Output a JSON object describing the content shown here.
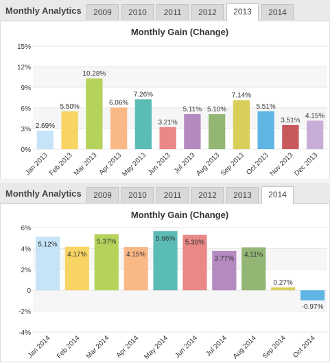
{
  "panels": [
    {
      "heading": "Monthly Analytics",
      "tabs": [
        "2009",
        "2010",
        "2011",
        "2012",
        "2013",
        "2014"
      ],
      "active_tab": "2013"
    },
    {
      "heading": "Monthly Analytics",
      "tabs": [
        "2009",
        "2010",
        "2011",
        "2012",
        "2013",
        "2014"
      ],
      "active_tab": "2014"
    }
  ],
  "chart_data": [
    {
      "type": "bar",
      "title": "Monthly Gain (Change)",
      "categories": [
        "Jan 2013",
        "Feb 2013",
        "Mar 2013",
        "Apr 2013",
        "May 2013",
        "Jun 2013",
        "Jul 2013",
        "Aug 2013",
        "Sep 2013",
        "Oct 2013",
        "Nov 2013",
        "Dec 2013"
      ],
      "values": [
        2.69,
        5.5,
        10.28,
        6.06,
        7.26,
        3.21,
        5.11,
        5.1,
        7.14,
        5.51,
        3.51,
        4.15
      ],
      "data_labels": [
        "2.69%",
        "5.50%",
        "10.28%",
        "6.06%",
        "7.26%",
        "3.21%",
        "5.11%",
        "5.10%",
        "7.14%",
        "5.51%",
        "3.51%",
        "4.15%"
      ],
      "colors": [
        "#c6e4f8",
        "#f7d463",
        "#b5d35a",
        "#fbb887",
        "#5bbcb5",
        "#e98886",
        "#b58ac0",
        "#93b674",
        "#d9ce5a",
        "#5fb5e3",
        "#c9585d",
        "#c6aed8"
      ],
      "yticks": [
        0,
        3,
        6,
        9,
        12,
        15
      ],
      "ytick_labels": [
        "0%",
        "3%",
        "6%",
        "9%",
        "12%",
        "15%"
      ],
      "ylim": [
        0,
        15
      ],
      "xlabel": "",
      "ylabel": ""
    },
    {
      "type": "bar",
      "title": "Monthly Gain (Change)",
      "categories": [
        "Jan 2014",
        "Feb 2014",
        "Mar 2014",
        "Apr 2014",
        "May 2014",
        "Jun 2014",
        "Jul 2014",
        "Aug 2014",
        "Sep 2014",
        "Oct 2014"
      ],
      "values": [
        5.12,
        4.17,
        5.37,
        4.15,
        5.66,
        5.3,
        3.77,
        4.11,
        0.27,
        -0.97
      ],
      "data_labels": [
        "5.12%",
        "4.17%",
        "5.37%",
        "4.15%",
        "5.66%",
        "5.30%",
        "3.77%",
        "4.11%",
        "0.27%",
        "-0.97%"
      ],
      "colors": [
        "#c6e4f8",
        "#f7d463",
        "#b5d35a",
        "#fbb887",
        "#5bbcb5",
        "#e98886",
        "#b58ac0",
        "#93b674",
        "#d9ce5a",
        "#5fb5e3"
      ],
      "yticks": [
        -4,
        -2,
        0,
        2,
        4,
        6
      ],
      "ytick_labels": [
        "-4%",
        "-2%",
        "0",
        "2%",
        "4%",
        "6%"
      ],
      "ylim": [
        -4,
        6
      ],
      "xlabel": "",
      "ylabel": ""
    }
  ]
}
